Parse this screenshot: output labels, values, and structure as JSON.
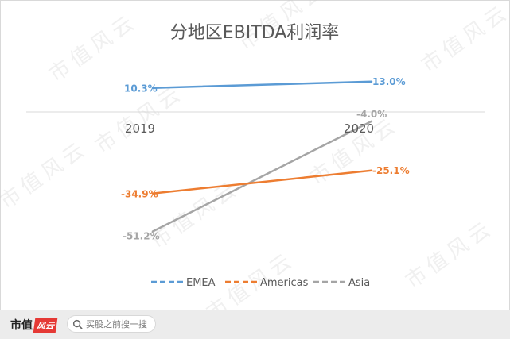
{
  "chart_data": {
    "type": "line",
    "title": "分地区EBITDA利润率",
    "categories": [
      "2019",
      "2020"
    ],
    "series": [
      {
        "name": "EMEA",
        "values": [
          10.3,
          13.0
        ],
        "labels": [
          "10.3%",
          "13.0%"
        ],
        "color": "#5b9bd5"
      },
      {
        "name": "Americas",
        "values": [
          -34.9,
          -25.1
        ],
        "labels": [
          "-34.9%",
          "-25.1%"
        ],
        "color": "#ed7d31"
      },
      {
        "name": "Asia",
        "values": [
          -51.2,
          -4.0
        ],
        "labels": [
          "-51.2%",
          "-4.0%"
        ],
        "color": "#a5a5a5"
      }
    ],
    "ylim": [
      -60,
      20
    ],
    "legend_position": "bottom",
    "grid": false
  },
  "watermark": "市值风云",
  "footer": {
    "brand": "市值",
    "brand_mark": "风云",
    "search_placeholder": "买股之前搜一搜",
    "search_icon": "search-icon"
  }
}
